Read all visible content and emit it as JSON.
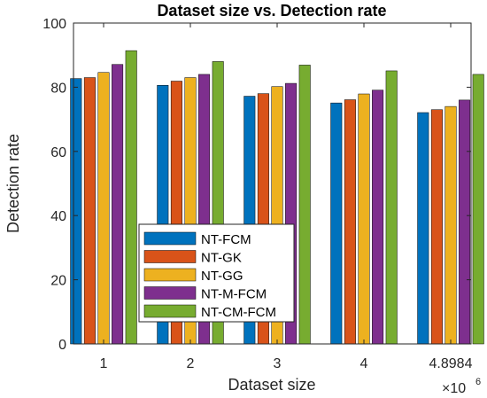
{
  "chart_data": {
    "type": "bar",
    "title": "Dataset size vs. Detection rate",
    "xlabel": "Dataset size",
    "ylabel": "Detection rate",
    "x_exponent": {
      "base": "×10",
      "power": "6"
    },
    "categories": [
      "1",
      "2",
      "3",
      "4",
      "4.8984"
    ],
    "ylim": [
      0,
      100
    ],
    "yticks": [
      "0",
      "20",
      "40",
      "60",
      "80",
      "100"
    ],
    "grid": false,
    "legend_position": "lower-left",
    "series": [
      {
        "name": "NT-FCM",
        "color": "#0072BD",
        "values": [
          82.7,
          80.6,
          77.2,
          75.1,
          72.1
        ]
      },
      {
        "name": "NT-GK",
        "color": "#D95319",
        "values": [
          83.0,
          81.9,
          78.0,
          76.1,
          73.0
        ]
      },
      {
        "name": "NT-GG",
        "color": "#EDB120",
        "values": [
          84.6,
          83.0,
          80.2,
          77.9,
          74.0
        ]
      },
      {
        "name": "NT-M-FCM",
        "color": "#7E2F8E",
        "values": [
          87.1,
          84.0,
          81.2,
          79.1,
          76.0
        ]
      },
      {
        "name": "NT-CM-FCM",
        "color": "#77AC30",
        "values": [
          91.4,
          88.0,
          86.9,
          85.1,
          84.0
        ]
      }
    ]
  }
}
